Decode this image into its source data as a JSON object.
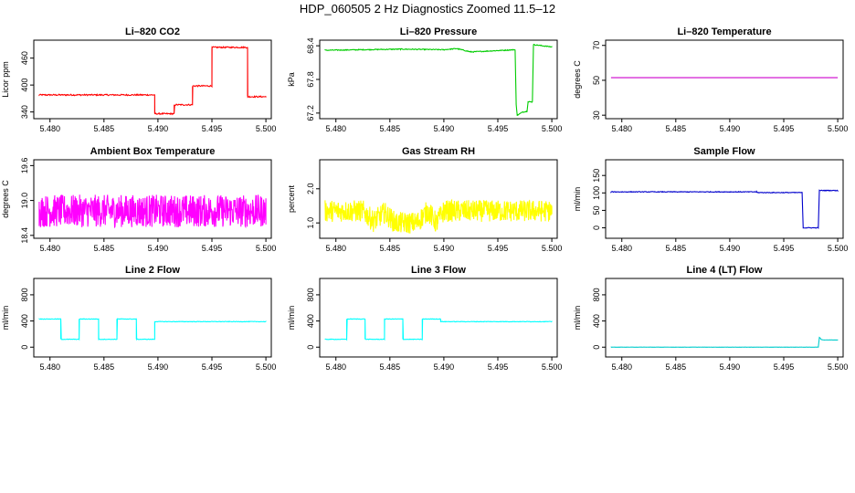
{
  "title": "HDP_060505  2 Hz Diagnostics Zoomed 11.5–12",
  "chart_data": [
    {
      "type": "line",
      "title": "Li–820 CO2",
      "ylabel": "Licor ppm",
      "color": "#ff0000",
      "xlim": [
        5.4785,
        5.5005
      ],
      "ylim": [
        325,
        500
      ],
      "xticks": [
        "5.480",
        "5.485",
        "5.490",
        "5.495",
        "5.500"
      ],
      "yticks": [
        "340",
        "400",
        "460"
      ],
      "noise": 1.5,
      "series": [
        {
          "x": [
            5.479,
            5.4897,
            5.4897,
            5.4915,
            5.4915,
            5.4932,
            5.4932,
            5.495,
            5.495,
            5.4983,
            5.4983,
            5.5
          ],
          "y": [
            378,
            378,
            336,
            336,
            356,
            356,
            398,
            398,
            484,
            484,
            374,
            374
          ]
        }
      ]
    },
    {
      "type": "line",
      "title": "Li–820 Pressure",
      "ylabel": "kPa",
      "color": "#00cc00",
      "xlim": [
        5.4785,
        5.5005
      ],
      "ylim": [
        67.1,
        68.5
      ],
      "xticks": [
        "5.480",
        "5.485",
        "5.490",
        "5.495",
        "5.500"
      ],
      "yticks": [
        "67.2",
        "67.8",
        "68.4"
      ],
      "noise": 0.008,
      "series": [
        {
          "x": [
            5.479,
            5.486,
            5.49,
            5.4912,
            5.4925,
            5.4966,
            5.4967,
            5.4968,
            5.4973,
            5.4977,
            5.4978,
            5.4982,
            5.4983,
            5.5
          ],
          "y": [
            68.32,
            68.34,
            68.33,
            68.35,
            68.29,
            68.33,
            67.35,
            67.16,
            67.22,
            67.23,
            67.4,
            67.4,
            68.42,
            68.38
          ]
        }
      ]
    },
    {
      "type": "line",
      "title": "Li–820 Temperature",
      "ylabel": "degrees C",
      "color": "#cc00cc",
      "xlim": [
        5.4785,
        5.5005
      ],
      "ylim": [
        28,
        73
      ],
      "xticks": [
        "5.480",
        "5.485",
        "5.490",
        "5.495",
        "5.500"
      ],
      "yticks": [
        "30",
        "50",
        "70"
      ],
      "noise": 0,
      "series": [
        {
          "x": [
            5.479,
            5.5
          ],
          "y": [
            51.5,
            51.5
          ]
        }
      ]
    },
    {
      "type": "line",
      "title": "Ambient Box Temperature",
      "ylabel": "degrees C",
      "color": "#ff00ff",
      "xlim": [
        5.4785,
        5.5005
      ],
      "ylim": [
        18.35,
        19.7
      ],
      "xticks": [
        "5.480",
        "5.485",
        "5.490",
        "5.495",
        "5.500"
      ],
      "yticks": [
        "18.4",
        "19.0",
        "19.6"
      ],
      "noise": 0.28,
      "series": [
        {
          "x": [
            5.479,
            5.5
          ],
          "y": [
            18.82,
            18.82
          ]
        }
      ]
    },
    {
      "type": "line",
      "title": "Gas Stream RH",
      "ylabel": "percent",
      "color": "#ffff00",
      "xlim": [
        5.4785,
        5.5005
      ],
      "ylim": [
        0.55,
        2.85
      ],
      "xticks": [
        "5.480",
        "5.485",
        "5.490",
        "5.495",
        "5.500"
      ],
      "yticks": [
        "1.0",
        "2.0"
      ],
      "noise": 0.32,
      "series": [
        {
          "x": [
            5.479,
            5.4825,
            5.4835,
            5.4845,
            5.4855,
            5.4875,
            5.4885,
            5.4893,
            5.49,
            5.5
          ],
          "y": [
            1.35,
            1.35,
            1.05,
            1.3,
            1.0,
            1.0,
            1.35,
            1.0,
            1.35,
            1.35
          ]
        }
      ]
    },
    {
      "type": "line",
      "title": "Sample Flow",
      "ylabel": "ml/min",
      "color": "#0000cc",
      "xlim": [
        5.4785,
        5.5005
      ],
      "ylim": [
        -30,
        195
      ],
      "xticks": [
        "5.480",
        "5.485",
        "5.490",
        "5.495",
        "5.500"
      ],
      "yticks": [
        "0",
        "50",
        "100",
        "150"
      ],
      "noise": 1,
      "series": [
        {
          "x": [
            5.479,
            5.4925,
            5.4925,
            5.4967,
            5.4968,
            5.4982,
            5.4983,
            5.5
          ],
          "y": [
            103,
            103,
            101,
            101,
            0,
            0,
            107,
            107
          ]
        }
      ]
    },
    {
      "type": "line",
      "title": "Line 2 Flow",
      "ylabel": "ml/min",
      "color": "#00ffff",
      "xlim": [
        5.4785,
        5.5005
      ],
      "ylim": [
        -150,
        1050
      ],
      "xticks": [
        "5.480",
        "5.485",
        "5.490",
        "5.495",
        "5.500"
      ],
      "yticks": [
        "0",
        "400",
        "800"
      ],
      "noise": 4,
      "series": [
        {
          "x": [
            5.479,
            5.481,
            5.481,
            5.4827,
            5.4827,
            5.4845,
            5.4845,
            5.4862,
            5.4862,
            5.488,
            5.488,
            5.4897,
            5.4897,
            5.5
          ],
          "y": [
            430,
            430,
            120,
            120,
            430,
            430,
            120,
            120,
            430,
            430,
            120,
            120,
            390,
            390
          ]
        }
      ]
    },
    {
      "type": "line",
      "title": "Line 3 Flow",
      "ylabel": "ml/min",
      "color": "#00ffff",
      "xlim": [
        5.4785,
        5.5005
      ],
      "ylim": [
        -150,
        1050
      ],
      "xticks": [
        "5.480",
        "5.485",
        "5.490",
        "5.495",
        "5.500"
      ],
      "yticks": [
        "0",
        "400",
        "800"
      ],
      "noise": 4,
      "series": [
        {
          "x": [
            5.479,
            5.481,
            5.481,
            5.4827,
            5.4827,
            5.4845,
            5.4845,
            5.4862,
            5.4862,
            5.488,
            5.488,
            5.4897,
            5.4897,
            5.5
          ],
          "y": [
            120,
            120,
            430,
            430,
            120,
            120,
            430,
            430,
            120,
            120,
            430,
            430,
            390,
            390
          ]
        }
      ]
    },
    {
      "type": "line",
      "title": "Line 4 (LT) Flow",
      "ylabel": "ml/min",
      "color": "#00cccc",
      "xlim": [
        5.4785,
        5.5005
      ],
      "ylim": [
        -150,
        1050
      ],
      "xticks": [
        "5.480",
        "5.485",
        "5.490",
        "5.495",
        "5.500"
      ],
      "yticks": [
        "0",
        "400",
        "800"
      ],
      "noise": 1,
      "series": [
        {
          "x": [
            5.479,
            5.4982,
            5.4983,
            5.4985,
            5.4987,
            5.5
          ],
          "y": [
            0,
            0,
            150,
            115,
            110,
            110
          ]
        }
      ]
    }
  ]
}
